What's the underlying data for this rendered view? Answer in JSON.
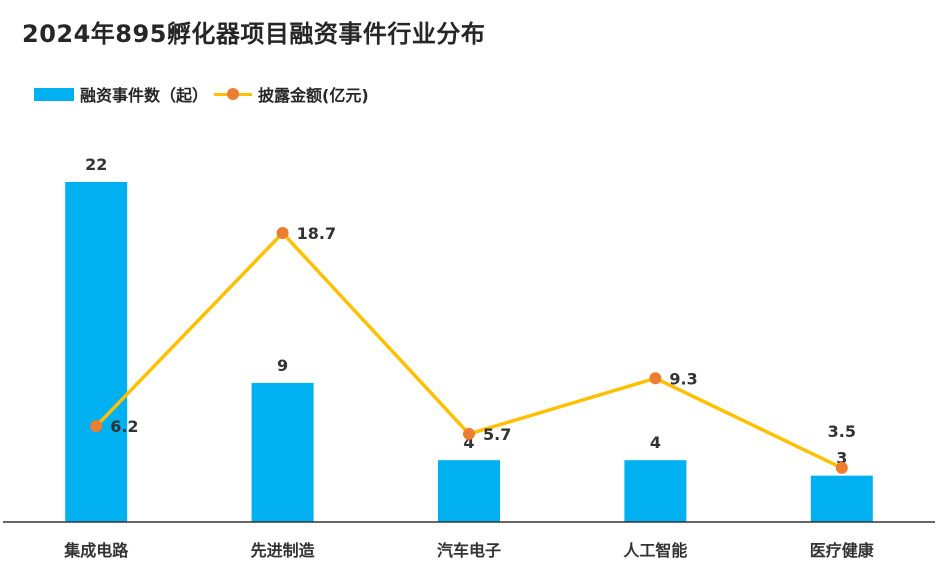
{
  "title": "2024年895孵化器项目融资事件行业分布",
  "colors": {
    "bar": "#00b0f0",
    "line": "#ffc000",
    "marker": "#ed7d31",
    "axis": "#333333"
  },
  "chart_data": {
    "type": "bar",
    "categories": [
      "集成电路",
      "先进制造",
      "汽车电子",
      "人工智能",
      "医疗健康"
    ],
    "series": [
      {
        "name": "融资事件数（起）",
        "type": "bar",
        "values": [
          22,
          9,
          4,
          4,
          3
        ]
      },
      {
        "name": "披露金额(亿元)",
        "type": "line",
        "values": [
          6.2,
          18.7,
          5.7,
          9.3,
          3.5
        ]
      }
    ],
    "ylim": [
      0,
      22
    ],
    "y2lim": [
      0,
      22
    ],
    "grid": false,
    "legend": "top-left"
  }
}
